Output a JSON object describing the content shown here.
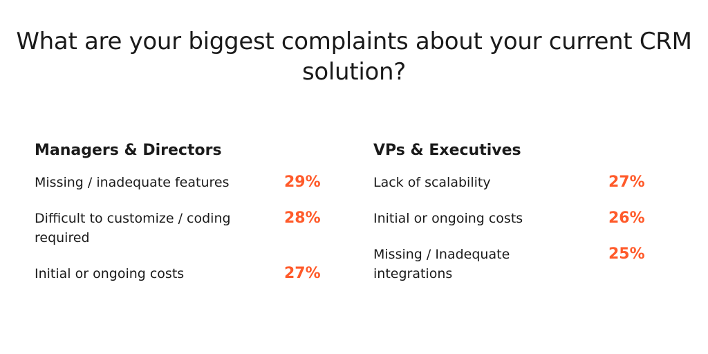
{
  "title": "What are your biggest complaints about your current CRM solution?",
  "accent_color": "#ff5a2a",
  "groups": [
    {
      "heading": "Managers & Directors",
      "items": [
        {
          "label": "Missing / inadequate features",
          "value": "29%"
        },
        {
          "label": "Difficult to customize / coding required",
          "value": "28%"
        },
        {
          "label": "Initial or ongoing costs",
          "value": "27%"
        }
      ]
    },
    {
      "heading": "VPs & Executives",
      "items": [
        {
          "label": "Lack of scalability",
          "value": "27%"
        },
        {
          "label": "Initial or ongoing costs",
          "value": "26%"
        },
        {
          "label": "Missing / Inadequate integrations",
          "value": "25%"
        }
      ]
    }
  ]
}
